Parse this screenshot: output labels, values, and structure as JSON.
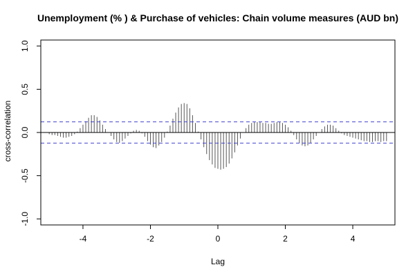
{
  "chart_data": {
    "type": "bar",
    "title": "Unemployment (% ) & Purchase of vehicles: Chain volume measures (AUD bn)",
    "xlabel": "Lag",
    "ylabel": "cross-correlation",
    "xlim": [
      -5.25,
      5.25
    ],
    "ylim": [
      -1.07,
      1.07
    ],
    "x_ticks": [
      -4,
      -2,
      0,
      2,
      4
    ],
    "y_ticks": [
      -1.0,
      -0.5,
      0.0,
      0.5,
      1.0
    ],
    "x_tick_labels": [
      "-4",
      "-2",
      "0",
      "2",
      "4"
    ],
    "y_tick_labels": [
      "-1.0",
      "-0.5",
      "0.0",
      "0.5",
      "1.0"
    ],
    "confidence_band": 0.123,
    "grid": false,
    "colors": {
      "spikes": "#555555",
      "zero_line": "#000000",
      "confidence": "#4040d0",
      "frame": "#000000"
    },
    "lag_step": 0.0833,
    "lags": [
      -5.0,
      -4.9167,
      -4.8333,
      -4.75,
      -4.6667,
      -4.5833,
      -4.5,
      -4.4167,
      -4.3333,
      -4.25,
      -4.1667,
      -4.0833,
      -4.0,
      -3.9167,
      -3.8333,
      -3.75,
      -3.6667,
      -3.5833,
      -3.5,
      -3.4167,
      -3.3333,
      -3.25,
      -3.1667,
      -3.0833,
      -3.0,
      -2.9167,
      -2.8333,
      -2.75,
      -2.6667,
      -2.5833,
      -2.5,
      -2.4167,
      -2.3333,
      -2.25,
      -2.1667,
      -2.0833,
      -2.0,
      -1.9167,
      -1.8333,
      -1.75,
      -1.6667,
      -1.5833,
      -1.5,
      -1.4167,
      -1.3333,
      -1.25,
      -1.1667,
      -1.0833,
      -1.0,
      -0.9167,
      -0.8333,
      -0.75,
      -0.6667,
      -0.5833,
      -0.5,
      -0.4167,
      -0.3333,
      -0.25,
      -0.1667,
      -0.0833,
      0.0,
      0.0833,
      0.1667,
      0.25,
      0.3333,
      0.4167,
      0.5,
      0.5833,
      0.6667,
      0.75,
      0.8333,
      0.9167,
      1.0,
      1.0833,
      1.1667,
      1.25,
      1.3333,
      1.4167,
      1.5,
      1.5833,
      1.6667,
      1.75,
      1.8333,
      1.9167,
      2.0,
      2.0833,
      2.1667,
      2.25,
      2.3333,
      2.4167,
      2.5,
      2.5833,
      2.6667,
      2.75,
      2.8333,
      2.9167,
      3.0,
      3.0833,
      3.1667,
      3.25,
      3.3333,
      3.4167,
      3.5,
      3.5833,
      3.6667,
      3.75,
      3.8333,
      3.9167,
      4.0,
      4.0833,
      4.1667,
      4.25,
      4.3333,
      4.4167,
      4.5,
      4.5833,
      4.6667,
      4.75,
      4.8333,
      4.9167,
      5.0
    ],
    "values": [
      -0.02,
      -0.03,
      -0.03,
      -0.04,
      -0.05,
      -0.06,
      -0.06,
      -0.05,
      -0.04,
      -0.02,
      0.01,
      0.05,
      0.09,
      0.13,
      0.17,
      0.2,
      0.2,
      0.18,
      0.14,
      0.09,
      0.04,
      0.0,
      -0.04,
      -0.08,
      -0.11,
      -0.12,
      -0.1,
      -0.07,
      -0.04,
      -0.01,
      0.02,
      0.03,
      0.02,
      -0.01,
      -0.05,
      -0.1,
      -0.14,
      -0.17,
      -0.18,
      -0.15,
      -0.11,
      -0.06,
      0.01,
      0.08,
      0.16,
      0.23,
      0.29,
      0.33,
      0.34,
      0.33,
      0.28,
      0.2,
      0.11,
      0.01,
      -0.08,
      -0.17,
      -0.25,
      -0.32,
      -0.37,
      -0.41,
      -0.42,
      -0.43,
      -0.42,
      -0.4,
      -0.36,
      -0.3,
      -0.23,
      -0.15,
      -0.07,
      0.0,
      0.05,
      0.09,
      0.11,
      0.12,
      0.12,
      0.12,
      0.11,
      0.11,
      0.1,
      0.1,
      0.11,
      0.12,
      0.12,
      0.11,
      0.09,
      0.06,
      0.02,
      -0.03,
      -0.08,
      -0.12,
      -0.15,
      -0.16,
      -0.15,
      -0.12,
      -0.08,
      -0.04,
      0.0,
      0.04,
      0.07,
      0.09,
      0.09,
      0.08,
      0.05,
      0.02,
      -0.01,
      -0.03,
      -0.04,
      -0.05,
      -0.06,
      -0.07,
      -0.08,
      -0.09,
      -0.1,
      -0.1,
      -0.11,
      -0.11,
      -0.1,
      -0.1,
      -0.11,
      -0.1,
      -0.1
    ]
  }
}
